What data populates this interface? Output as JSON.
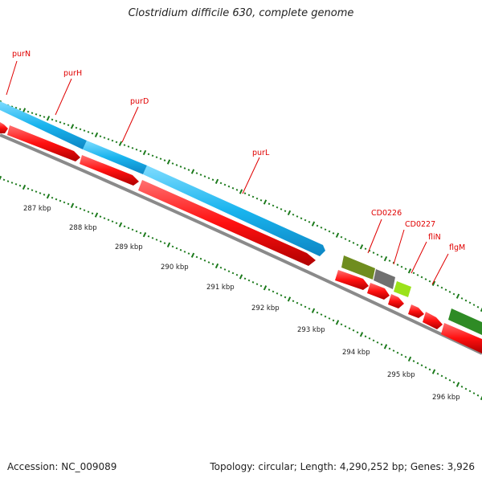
{
  "header": {
    "title": "Clostridium difficile 630, complete genome"
  },
  "footer": {
    "accession": "Accession: NC_009089",
    "summary": "Topology: circular; Length: 4,290,252 bp; Genes: 3,926"
  },
  "colors": {
    "cds": "#ff1010",
    "label": "#e00000",
    "pur_operon": "#19b4ee",
    "cd0226": "#6f8d1f",
    "cd0227_block": "#707070",
    "flin": "#9be21a",
    "flgm": "#2e8b25",
    "backbone": "#8a8a8a",
    "ticks": "#1c7a1c"
  },
  "genome_map": {
    "gene_labels": [
      "purN",
      "purH",
      "purD",
      "purL",
      "CD0226",
      "CD0227",
      "fliN",
      "flgM"
    ],
    "scale_labels": [
      "287 kbp",
      "288 kbp",
      "289 kbp",
      "290 kbp",
      "291 kbp",
      "292 kbp",
      "293 kbp",
      "294 kbp",
      "295 kbp",
      "296 kbp"
    ]
  }
}
